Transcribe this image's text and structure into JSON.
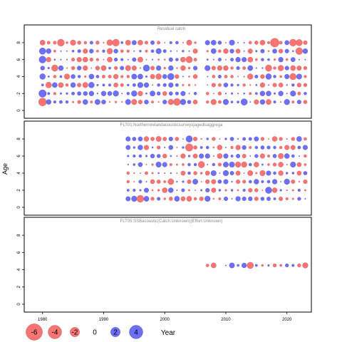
{
  "colors": {
    "positive": "#6f6ff5",
    "negative": "#f57474",
    "positive_stroke": "#4646c8",
    "negative_stroke": "#d05050",
    "frame": "#000000"
  },
  "chart_data": {
    "type": "scatter",
    "subtype": "bubble-residuals",
    "ylabel": "Age",
    "xlabel": "Year",
    "xlim": [
      1977,
      2024
    ],
    "x_ticks": [
      1980,
      1990,
      2000,
      2010,
      2020
    ],
    "ylim": [
      -0.5,
      9.5
    ],
    "y_ticks": [
      0,
      2,
      4,
      6,
      8
    ],
    "legend": {
      "title": "Year",
      "placement": "bottom-left",
      "items": [
        {
          "label": "-6",
          "value": -6
        },
        {
          "label": "-4",
          "value": -4
        },
        {
          "label": "-2",
          "value": -2
        },
        {
          "label": "0",
          "value": 0
        },
        {
          "label": "2",
          "value": 2
        },
        {
          "label": "4",
          "value": 4
        }
      ]
    },
    "panels": [
      {
        "title": "Residual catch",
        "years": [
          1980,
          2023
        ],
        "gaps": [
          2006
        ],
        "ages": [
          1,
          2,
          3,
          4,
          5,
          6,
          7,
          8
        ],
        "highlights": [
          {
            "x": 1983,
            "y": 8,
            "v": -3.5
          },
          {
            "x": 1991,
            "y": 8,
            "v": -2.5
          },
          {
            "x": 1992,
            "y": 8,
            "v": -3.5
          },
          {
            "x": 2018,
            "y": 8,
            "v": -5.5
          },
          {
            "x": 2021,
            "y": 8,
            "v": -3.5
          },
          {
            "x": 2022,
            "y": 8,
            "v": -3.0
          },
          {
            "x": 1980,
            "y": 7,
            "v": 3.0
          },
          {
            "x": 2022,
            "y": 7,
            "v": -3.5
          },
          {
            "x": 1980,
            "y": 6,
            "v": 3.5
          },
          {
            "x": 2004,
            "y": 6,
            "v": -3.0
          },
          {
            "x": 1982,
            "y": 5,
            "v": -3.0
          },
          {
            "x": 1997,
            "y": 5,
            "v": 3.0
          },
          {
            "x": 2017,
            "y": 5,
            "v": -3.0
          },
          {
            "x": 2001,
            "y": 4,
            "v": 3.0
          },
          {
            "x": 2021,
            "y": 4,
            "v": -3.0
          },
          {
            "x": 1981,
            "y": 3,
            "v": -2.5
          },
          {
            "x": 1980,
            "y": 2,
            "v": 4.0
          },
          {
            "x": 1980,
            "y": 1,
            "v": -4.5
          },
          {
            "x": 2002,
            "y": 1,
            "v": -3.5
          },
          {
            "x": 2013,
            "y": 1,
            "v": 3.0
          }
        ]
      },
      {
        "title": "FLT01:Northernirelandacousticsurveysjagedisaggrega",
        "years": [
          1994,
          2023
        ],
        "gaps": [],
        "ages": [
          1,
          2,
          3,
          4,
          5,
          6,
          7,
          8
        ],
        "highlights": [
          {
            "x": 2004,
            "y": 8,
            "v": 3.0
          },
          {
            "x": 2004,
            "y": 7,
            "v": -4.0
          },
          {
            "x": 2006,
            "y": 5,
            "v": -3.0
          },
          {
            "x": 1996,
            "y": 1,
            "v": -3.5
          },
          {
            "x": 2001,
            "y": 3,
            "v": -2.5
          },
          {
            "x": 2017,
            "y": 2,
            "v": 3.0
          }
        ]
      },
      {
        "title": "FLT05:SSBacoustic(Catch:Unknown)(Effort:Unknown)",
        "years": [
          2007,
          2023
        ],
        "gaps": [
          2009
        ],
        "ages": [
          4.5
        ],
        "highlights": [
          {
            "x": 2014,
            "y": 4.5,
            "v": -3.0
          }
        ]
      }
    ]
  }
}
